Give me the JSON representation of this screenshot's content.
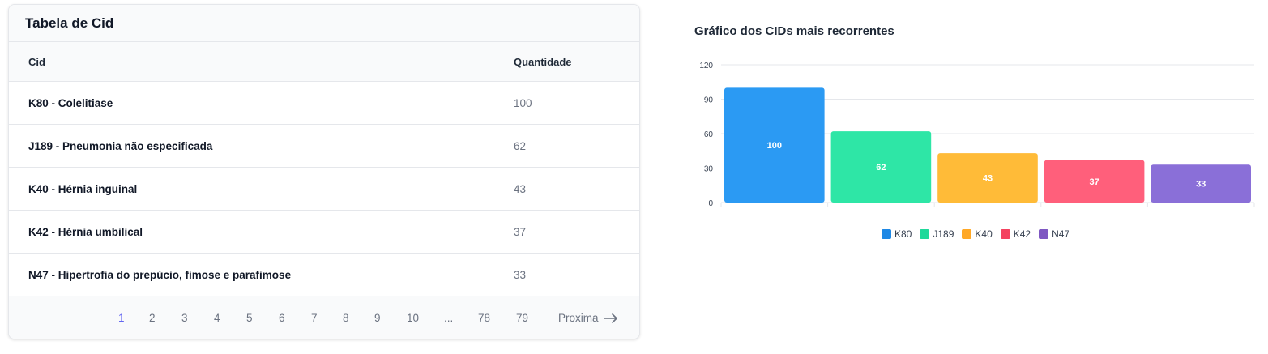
{
  "table": {
    "title": "Tabela de Cid",
    "columns": {
      "cid": "Cid",
      "quantity": "Quantidade"
    },
    "rows": [
      {
        "cid": "K80 - Colelitiase",
        "quantity": "100"
      },
      {
        "cid": "J189 - Pneumonia não especificada",
        "quantity": "62"
      },
      {
        "cid": "K40 - Hérnia inguinal",
        "quantity": "43"
      },
      {
        "cid": "K42 - Hérnia umbilical",
        "quantity": "37"
      },
      {
        "cid": "N47 - Hipertrofia do prepúcio, fimose e parafimose",
        "quantity": "33"
      }
    ],
    "pagination": {
      "pages": [
        "1",
        "2",
        "3",
        "4",
        "5",
        "6",
        "7",
        "8",
        "9",
        "10",
        "...",
        "78",
        "79"
      ],
      "current": "1",
      "next_label": "Proxima"
    }
  },
  "chart_data": {
    "type": "bar",
    "title": "Gráfico dos CIDs mais recorrentes",
    "categories": [
      "K80",
      "J189",
      "K40",
      "K42",
      "N47"
    ],
    "values": [
      100,
      62,
      43,
      37,
      33
    ],
    "data_labels": [
      "100",
      "62",
      "43",
      "37",
      "33"
    ],
    "colors": [
      "#2b9af3",
      "#2ee6a6",
      "#ffbb38",
      "#ff5f7b",
      "#8a6fd8"
    ],
    "ylim": [
      0,
      120
    ],
    "yticks": [
      "0",
      "30",
      "60",
      "90",
      "120"
    ],
    "grid": true,
    "legend": {
      "placement": "bottom",
      "entries": [
        "K80",
        "J189",
        "K40",
        "K42",
        "N47"
      ],
      "colors": [
        "#1e88e5",
        "#1fd99a",
        "#ffa826",
        "#f4425f",
        "#7e57c2"
      ]
    }
  }
}
